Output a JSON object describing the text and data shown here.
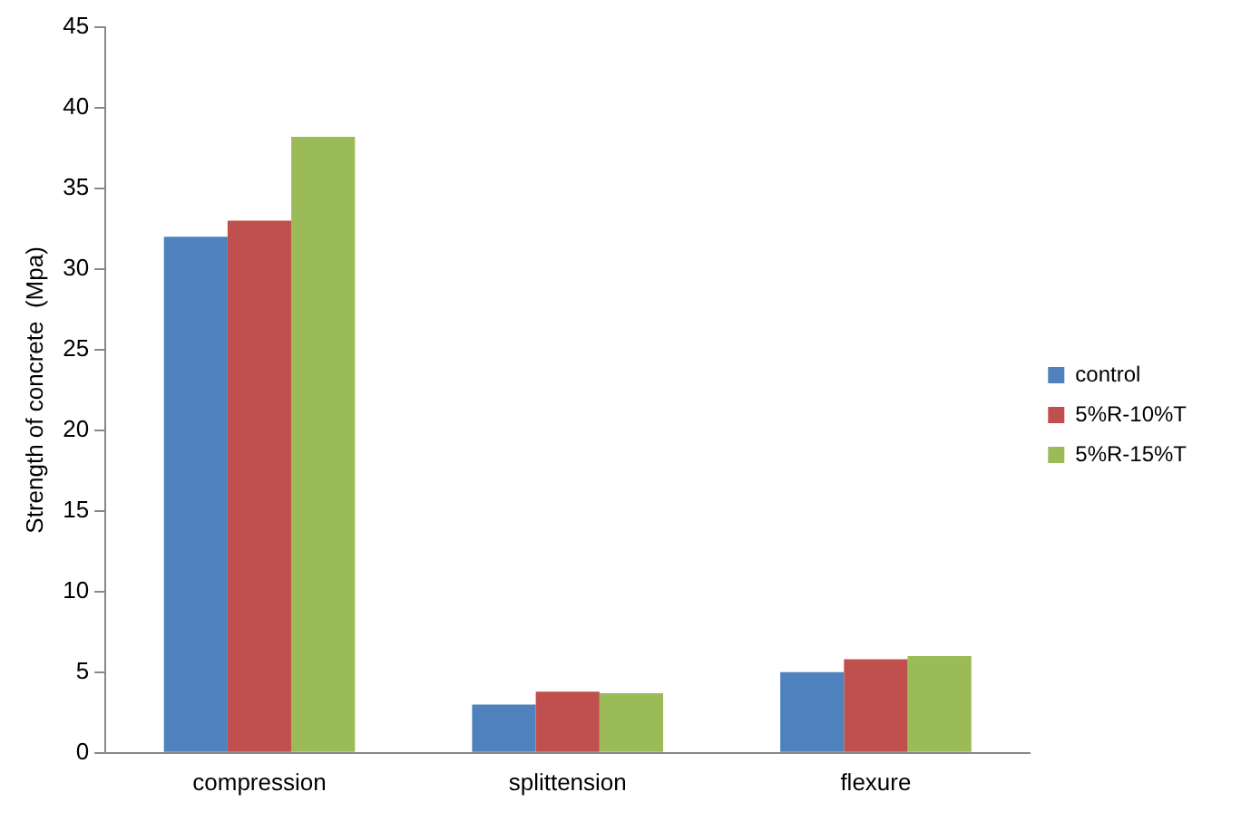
{
  "chart_data": {
    "type": "bar",
    "ylabel": "Strength of concrete  (Mpa)",
    "categories": [
      "compression",
      "splittension",
      "flexure"
    ],
    "series": [
      {
        "name": "control",
        "color": "#4f81bd",
        "values": [
          32,
          3,
          5
        ]
      },
      {
        "name": "5%R-10%T",
        "color": "#c0504d",
        "values": [
          33,
          3.8,
          5.8
        ]
      },
      {
        "name": "5%R-15%T",
        "color": "#9bbb59",
        "values": [
          38.2,
          3.7,
          6
        ]
      }
    ],
    "ylim": [
      0,
      45
    ],
    "yticks": [
      0,
      5,
      10,
      15,
      20,
      25,
      30,
      35,
      40,
      45
    ],
    "grid": false,
    "legend": "right"
  }
}
